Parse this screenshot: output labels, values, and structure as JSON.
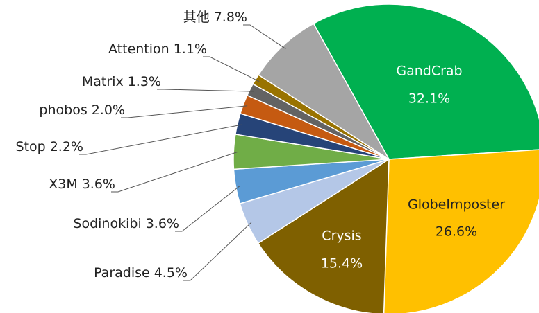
{
  "chart_data": {
    "type": "pie",
    "categories": [
      "GandCrab",
      "GlobeImposter",
      "Crysis",
      "Paradise",
      "Sodinokibi",
      "X3M",
      "Stop",
      "phobos",
      "Matrix",
      "Attention",
      "其他"
    ],
    "values": [
      32.1,
      26.6,
      15.4,
      4.5,
      3.6,
      3.6,
      2.2,
      2.0,
      1.3,
      1.1,
      7.8
    ],
    "value_labels": [
      "32.1%",
      "26.6%",
      "15.4%",
      "4.5%",
      "3.6%",
      "3.6%",
      "2.2%",
      "2.0%",
      "1.3%",
      "1.1%",
      "7.8%"
    ],
    "colors": [
      "#00b050",
      "#ffc000",
      "#7f6000",
      "#b4c7e7",
      "#5b9bd5",
      "#70ad47",
      "#264478",
      "#c55a11",
      "#636363",
      "#997300",
      "#a5a5a5"
    ]
  }
}
